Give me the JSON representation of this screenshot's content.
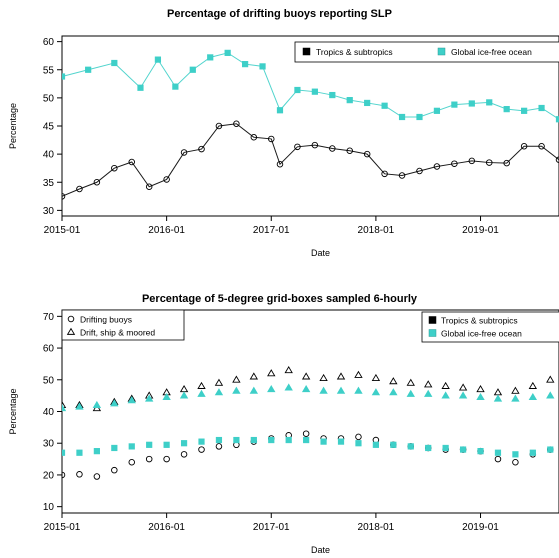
{
  "chart_data": [
    {
      "type": "scatter",
      "title": "Percentage of drifting buoys reporting SLP",
      "xlabel": "Date",
      "ylabel": "Percentage",
      "xlim": [
        "2015-01",
        "2019-10"
      ],
      "ylim": [
        29,
        61
      ],
      "xticks": [
        "2015-01",
        "2016-01",
        "2017-01",
        "2018-01",
        "2019-01"
      ],
      "yticks": [
        30,
        35,
        40,
        45,
        50,
        55,
        60
      ],
      "legend": {
        "placement": "top-right",
        "entries": [
          {
            "label": "Tropics & subtropics",
            "symbol": "square",
            "color": "#000000"
          },
          {
            "label": "Global ice-free ocean",
            "symbol": "square",
            "color": "#3ecfc8"
          }
        ]
      },
      "series": [
        {
          "marker": "circle",
          "fill": "none",
          "color": "#000000",
          "line": "smooth",
          "x": [
            "2015-01",
            "2015-03",
            "2015-05",
            "2015-07",
            "2015-09",
            "2015-11",
            "2016-01",
            "2016-03",
            "2016-05",
            "2016-07",
            "2016-09",
            "2016-11",
            "2017-01",
            "2017-02",
            "2017-04",
            "2017-06",
            "2017-08",
            "2017-10",
            "2017-12",
            "2018-02",
            "2018-04",
            "2018-06",
            "2018-08",
            "2018-10",
            "2018-12",
            "2019-02",
            "2019-04",
            "2019-06",
            "2019-08",
            "2019-10"
          ],
          "y": [
            32.5,
            33.8,
            35.0,
            37.5,
            38.6,
            34.2,
            35.5,
            40.3,
            40.9,
            45.0,
            45.4,
            43.0,
            42.7,
            38.2,
            41.3,
            41.6,
            41.0,
            40.6,
            40.0,
            36.5,
            36.2,
            37.0,
            37.8,
            38.3,
            38.8,
            38.5,
            38.4,
            41.4,
            41.4,
            39.0
          ]
        },
        {
          "marker": "square",
          "fill": "#3ecfc8",
          "color": "#3ecfc8",
          "line": "smooth",
          "x": [
            "2015-01",
            "2015-04",
            "2015-07",
            "2015-10",
            "2015-12",
            "2016-02",
            "2016-04",
            "2016-06",
            "2016-08",
            "2016-10",
            "2016-12",
            "2017-02",
            "2017-04",
            "2017-06",
            "2017-08",
            "2017-10",
            "2017-12",
            "2018-02",
            "2018-04",
            "2018-06",
            "2018-08",
            "2018-10",
            "2018-12",
            "2019-02",
            "2019-04",
            "2019-06",
            "2019-08",
            "2019-10"
          ],
          "y": [
            53.8,
            55.0,
            56.2,
            51.8,
            56.8,
            52.0,
            55.0,
            57.2,
            58.0,
            56.0,
            55.6,
            47.8,
            51.4,
            51.1,
            50.5,
            49.6,
            49.1,
            48.6,
            46.6,
            46.6,
            47.7,
            48.8,
            49.0,
            49.2,
            48.0,
            47.7,
            48.2,
            46.2
          ]
        }
      ]
    },
    {
      "type": "scatter",
      "title": "Percentage of 5-degree grid-boxes sampled 6-hourly",
      "xlabel": "Date",
      "ylabel": "Percentage",
      "xlim": [
        "2015-01",
        "2019-10"
      ],
      "ylim": [
        8,
        72
      ],
      "xticks": [
        "2015-01",
        "2016-01",
        "2017-01",
        "2018-01",
        "2019-01"
      ],
      "yticks": [
        10,
        20,
        30,
        40,
        50,
        60,
        70
      ],
      "legend_markers": {
        "placement": "top-left",
        "entries": [
          {
            "label": "Drifting buoys",
            "symbol": "circle"
          },
          {
            "label": "Drift, ship & moored",
            "symbol": "triangle"
          }
        ]
      },
      "legend_regions": {
        "placement": "top-right",
        "entries": [
          {
            "label": "Tropics & subtropics",
            "symbol": "square",
            "color": "#000000"
          },
          {
            "label": "Global ice-free ocean",
            "symbol": "square",
            "color": "#3ecfc8"
          }
        ]
      },
      "series": [
        {
          "marker": "circle",
          "fill": "none",
          "color": "#000000",
          "x": [
            "2015-01",
            "2015-03",
            "2015-05",
            "2015-07",
            "2015-09",
            "2015-11",
            "2016-01",
            "2016-03",
            "2016-05",
            "2016-07",
            "2016-09",
            "2016-11",
            "2017-01",
            "2017-03",
            "2017-05",
            "2017-07",
            "2017-09",
            "2017-11",
            "2018-01",
            "2018-03",
            "2018-05",
            "2018-07",
            "2018-09",
            "2018-11",
            "2019-01",
            "2019-03",
            "2019-05",
            "2019-07",
            "2019-09"
          ],
          "y": [
            20.0,
            20.2,
            19.5,
            21.5,
            24.0,
            25.0,
            25.0,
            26.5,
            28.0,
            29.0,
            29.5,
            30.5,
            31.5,
            32.5,
            33.0,
            31.5,
            31.5,
            32.0,
            31.0,
            29.5,
            29.0,
            28.5,
            28.0,
            28.0,
            27.5,
            25.0,
            24.0,
            26.5,
            28.0
          ]
        },
        {
          "marker": "square",
          "fill": "#3ecfc8",
          "color": "#3ecfc8",
          "x": [
            "2015-01",
            "2015-03",
            "2015-05",
            "2015-07",
            "2015-09",
            "2015-11",
            "2016-01",
            "2016-03",
            "2016-05",
            "2016-07",
            "2016-09",
            "2016-11",
            "2017-01",
            "2017-03",
            "2017-05",
            "2017-07",
            "2017-09",
            "2017-11",
            "2018-01",
            "2018-03",
            "2018-05",
            "2018-07",
            "2018-09",
            "2018-11",
            "2019-01",
            "2019-03",
            "2019-05",
            "2019-07",
            "2019-09"
          ],
          "y": [
            27.0,
            27.0,
            27.5,
            28.5,
            29.0,
            29.5,
            29.5,
            30.0,
            30.5,
            31.0,
            31.0,
            31.0,
            31.0,
            31.0,
            31.0,
            30.5,
            30.5,
            30.0,
            29.5,
            29.5,
            29.0,
            28.5,
            28.5,
            28.0,
            27.5,
            27.0,
            26.5,
            27.0,
            28.0
          ]
        },
        {
          "marker": "triangle",
          "fill": "none",
          "color": "#000000",
          "x": [
            "2015-01",
            "2015-03",
            "2015-05",
            "2015-07",
            "2015-09",
            "2015-11",
            "2016-01",
            "2016-03",
            "2016-05",
            "2016-07",
            "2016-09",
            "2016-11",
            "2017-01",
            "2017-03",
            "2017-05",
            "2017-07",
            "2017-09",
            "2017-11",
            "2018-01",
            "2018-03",
            "2018-05",
            "2018-07",
            "2018-09",
            "2018-11",
            "2019-01",
            "2019-03",
            "2019-05",
            "2019-07",
            "2019-09"
          ],
          "y": [
            42.0,
            42.0,
            41.0,
            43.0,
            44.0,
            45.0,
            46.0,
            47.0,
            48.0,
            49.0,
            50.0,
            51.0,
            52.0,
            53.0,
            51.0,
            50.5,
            51.0,
            51.5,
            50.5,
            49.5,
            49.0,
            48.5,
            48.0,
            47.5,
            47.0,
            46.0,
            46.5,
            48.0,
            50.0
          ]
        },
        {
          "marker": "triangle",
          "fill": "#3ecfc8",
          "color": "#3ecfc8",
          "x": [
            "2015-01",
            "2015-03",
            "2015-05",
            "2015-07",
            "2015-09",
            "2015-11",
            "2016-01",
            "2016-03",
            "2016-05",
            "2016-07",
            "2016-09",
            "2016-11",
            "2017-01",
            "2017-03",
            "2017-05",
            "2017-07",
            "2017-09",
            "2017-11",
            "2018-01",
            "2018-03",
            "2018-05",
            "2018-07",
            "2018-09",
            "2018-11",
            "2019-01",
            "2019-03",
            "2019-05",
            "2019-07",
            "2019-09"
          ],
          "y": [
            41.0,
            41.5,
            42.0,
            42.5,
            43.5,
            44.0,
            44.5,
            45.0,
            45.5,
            46.0,
            46.5,
            46.5,
            47.0,
            47.5,
            47.0,
            46.5,
            46.5,
            46.5,
            46.0,
            46.0,
            45.5,
            45.5,
            45.0,
            45.0,
            44.5,
            44.0,
            44.0,
            44.5,
            45.0
          ]
        }
      ]
    }
  ]
}
